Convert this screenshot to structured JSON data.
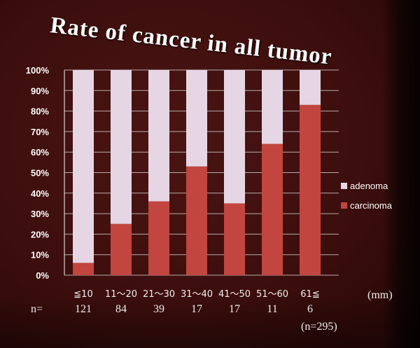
{
  "chart_data": {
    "type": "bar",
    "stacked": true,
    "title": "Rate of cancer in all tumor",
    "categories": [
      "≦10",
      "11〜20",
      "21〜30",
      "31〜40",
      "41〜50",
      "51〜60",
      "61≦"
    ],
    "x_unit": "(mm)",
    "n_label": "n=",
    "n_values": [
      121,
      84,
      39,
      17,
      17,
      11,
      6
    ],
    "total_n_label": "(n=295)",
    "ylim": [
      0,
      100
    ],
    "yticks": [
      "0%",
      "10%",
      "20%",
      "30%",
      "40%",
      "50%",
      "60%",
      "70%",
      "80%",
      "90%",
      "100%"
    ],
    "grid": true,
    "legend": "right",
    "series": [
      {
        "name": "adenoma",
        "color": "#e6d6e4",
        "values": [
          94,
          75,
          64,
          47,
          65,
          36,
          17
        ]
      },
      {
        "name": "carcinoma",
        "color": "#c2453f",
        "values": [
          6,
          25,
          36,
          53,
          35,
          64,
          83
        ]
      }
    ]
  },
  "colors": {
    "background": "#3c0e0d",
    "text": "#ffffff",
    "grid": "#cfc6c6"
  }
}
